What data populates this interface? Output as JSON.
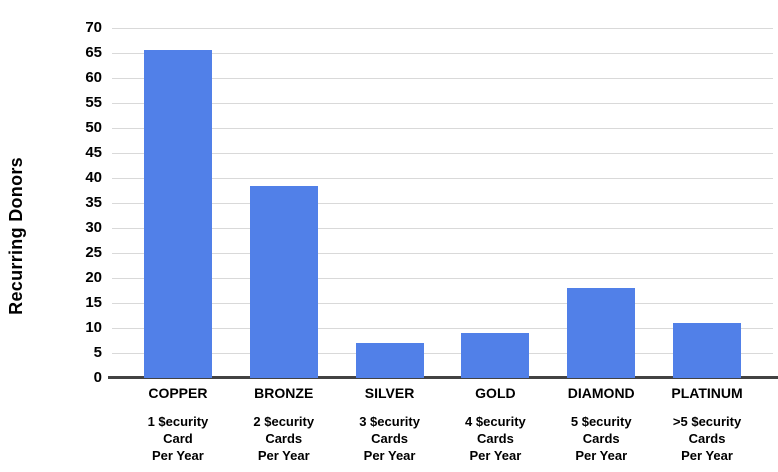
{
  "chart_data": {
    "type": "bar",
    "title": "",
    "xlabel": "",
    "ylabel": "Recurring Donors",
    "ylim": [
      0,
      70
    ],
    "ytick_step": 5,
    "grid": true,
    "legend": false,
    "categories": [
      "COPPER",
      "BRONZE",
      "SILVER",
      "GOLD",
      "DIAMOND",
      "PLATINUM"
    ],
    "sub_labels": [
      [
        "1 $ecurity",
        "Card",
        "Per Year"
      ],
      [
        "2 $ecurity",
        "Cards",
        "Per Year"
      ],
      [
        "3 $ecurity",
        "Cards",
        "Per Year"
      ],
      [
        "4 $ecurity",
        "Cards",
        "Per Year"
      ],
      [
        "5 $ecurity",
        "Cards",
        "Per Year"
      ],
      [
        ">5 $ecurity",
        "Cards",
        "Per Year"
      ]
    ],
    "values": [
      65.7,
      38.5,
      7,
      9,
      18,
      11
    ]
  },
  "colors": {
    "bar": "#5180e8",
    "gridline": "#d9d9d9",
    "axis_line": "#424242",
    "text": "#000000",
    "background": "#ffffff"
  }
}
